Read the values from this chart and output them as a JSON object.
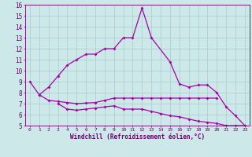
{
  "xlabel": "Windchill (Refroidissement éolien,°C)",
  "ylim": [
    5,
    16
  ],
  "xlim": [
    -0.5,
    23.5
  ],
  "bg_color": "#cce8e8",
  "line_color": "#aa00aa",
  "grid_color": "#aacccc",
  "tick_label_color": "#660066",
  "line1_x": [
    0,
    1,
    2,
    3,
    4,
    5,
    6,
    7,
    8,
    9,
    10,
    11,
    12,
    13,
    15,
    16,
    17,
    18,
    19,
    20,
    21,
    22,
    23
  ],
  "line1_y": [
    9.0,
    7.8,
    8.5,
    9.5,
    10.5,
    11.0,
    11.5,
    11.5,
    12.0,
    12.0,
    13.0,
    13.0,
    15.7,
    13.0,
    10.8,
    8.8,
    8.5,
    8.7,
    8.7,
    8.0,
    6.7,
    5.9,
    5.0
  ],
  "line2_x": [
    1,
    2,
    3,
    4,
    5,
    6,
    7,
    8,
    9,
    10,
    11,
    12,
    13,
    14,
    15,
    16,
    17,
    18,
    19,
    20
  ],
  "line2_y": [
    7.8,
    7.3,
    7.2,
    7.1,
    7.0,
    7.05,
    7.1,
    7.3,
    7.5,
    7.5,
    7.5,
    7.5,
    7.5,
    7.5,
    7.5,
    7.5,
    7.5,
    7.5,
    7.5,
    7.5
  ],
  "line3_x": [
    3,
    4,
    5,
    6,
    7,
    8,
    9,
    10,
    11,
    12,
    13,
    14,
    15,
    16,
    17,
    18,
    19,
    20,
    21,
    22,
    23
  ],
  "line3_y": [
    7.0,
    6.5,
    6.4,
    6.5,
    6.6,
    6.7,
    6.8,
    6.5,
    6.5,
    6.5,
    6.3,
    6.1,
    5.9,
    5.8,
    5.6,
    5.4,
    5.3,
    5.2,
    5.0,
    5.0,
    5.0
  ]
}
